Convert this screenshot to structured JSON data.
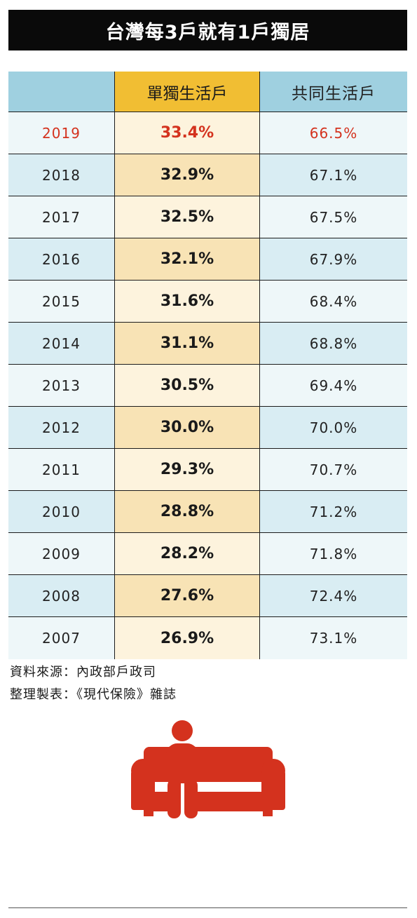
{
  "title": "台灣每3戶就有1戶獨居",
  "table": {
    "headers": [
      "",
      "單獨生活戶",
      "共同生活戶"
    ],
    "rows": [
      {
        "year": "2019",
        "single": "33.4%",
        "shared": "66.5%",
        "highlight": true
      },
      {
        "year": "2018",
        "single": "32.9%",
        "shared": "67.1%"
      },
      {
        "year": "2017",
        "single": "32.5%",
        "shared": "67.5%"
      },
      {
        "year": "2016",
        "single": "32.1%",
        "shared": "67.9%"
      },
      {
        "year": "2015",
        "single": "31.6%",
        "shared": "68.4%"
      },
      {
        "year": "2014",
        "single": "31.1%",
        "shared": "68.8%"
      },
      {
        "year": "2013",
        "single": "30.5%",
        "shared": "69.4%"
      },
      {
        "year": "2012",
        "single": "30.0%",
        "shared": "70.0%"
      },
      {
        "year": "2011",
        "single": "29.3%",
        "shared": "70.7%"
      },
      {
        "year": "2010",
        "single": "28.8%",
        "shared": "71.2%"
      },
      {
        "year": "2009",
        "single": "28.2%",
        "shared": "71.8%"
      },
      {
        "year": "2008",
        "single": "27.6%",
        "shared": "72.4%"
      },
      {
        "year": "2007",
        "single": "26.9%",
        "shared": "73.1%"
      }
    ]
  },
  "source_line": "資料來源：內政部戶政司",
  "compiled_line": "整理製表：《現代保險》雜誌",
  "colors": {
    "title_bg": "#0a0a0a",
    "header_blue": "#9fd0e0",
    "header_yellow": "#f1be33",
    "highlight_red": "#d4321e",
    "icon_red": "#d4321e"
  },
  "icon": "person-on-sofa-icon",
  "chart_data": {
    "type": "table",
    "title": "台灣每3戶就有1戶獨居",
    "columns": [
      "",
      "單獨生活戶",
      "共同生活戶"
    ],
    "x": [
      2019,
      2018,
      2017,
      2016,
      2015,
      2014,
      2013,
      2012,
      2011,
      2010,
      2009,
      2008,
      2007
    ],
    "series": [
      {
        "name": "單獨生活戶",
        "values": [
          33.4,
          32.9,
          32.5,
          32.1,
          31.6,
          31.1,
          30.5,
          30.0,
          29.3,
          28.8,
          28.2,
          27.6,
          26.9
        ]
      },
      {
        "name": "共同生活戶",
        "values": [
          66.5,
          67.1,
          67.5,
          67.9,
          68.4,
          68.8,
          69.4,
          70.0,
          70.7,
          71.2,
          71.8,
          72.4,
          73.1
        ]
      }
    ]
  }
}
